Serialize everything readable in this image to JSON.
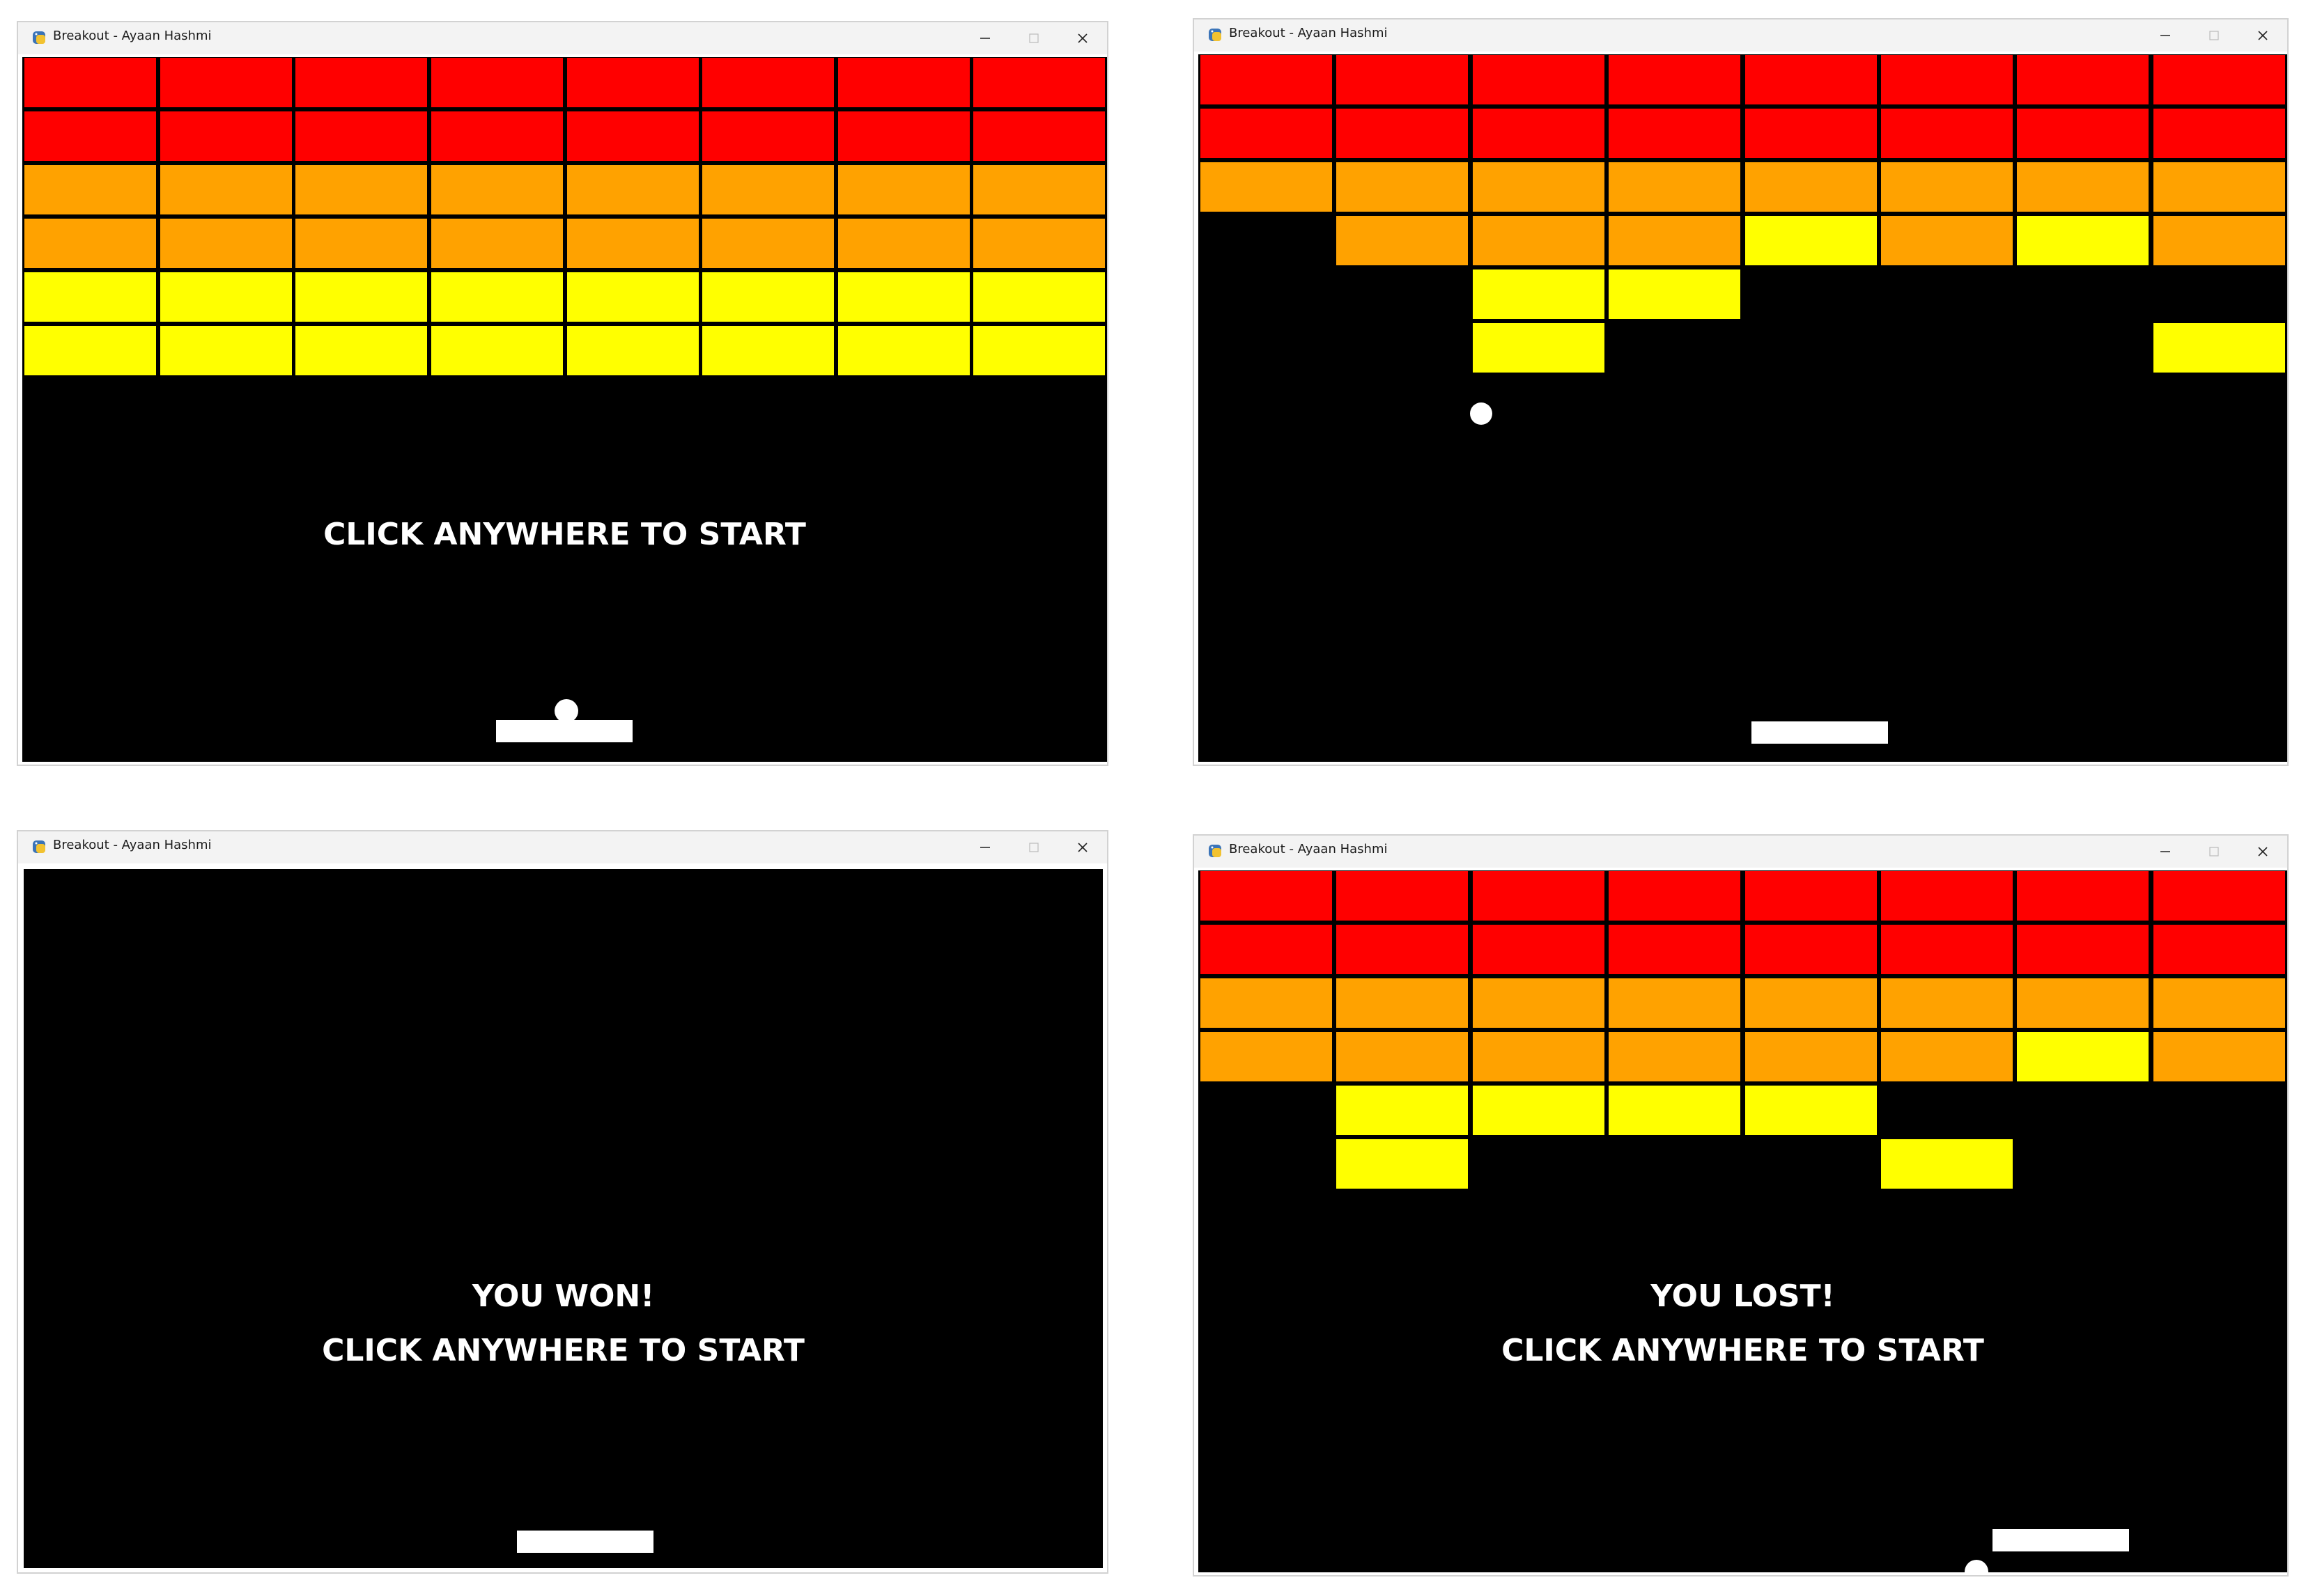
{
  "colors": {
    "red": "#ff0000",
    "orange": "#ffa200",
    "yellow": "#ffff00",
    "canvas": "#000000",
    "paddle": "#ffffff",
    "ball": "#ffffff",
    "titlebar": "#f3f3f3"
  },
  "icons": {
    "app": "python-pygame-icon",
    "minimize": "minimize-icon",
    "maximize": "maximize-icon",
    "close": "close-icon"
  },
  "grid": {
    "columns": 8,
    "rows": 6,
    "row_colors": [
      "red",
      "red",
      "orange",
      "orange",
      "yellow",
      "yellow"
    ]
  },
  "windows": [
    {
      "id": "start-screen",
      "title": "Breakout - Ayaan Hashmi",
      "bricks_present": [
        [
          1,
          1,
          1,
          1,
          1,
          1,
          1,
          1
        ],
        [
          1,
          1,
          1,
          1,
          1,
          1,
          1,
          1
        ],
        [
          1,
          1,
          1,
          1,
          1,
          1,
          1,
          1
        ],
        [
          1,
          1,
          1,
          1,
          1,
          1,
          1,
          1
        ],
        [
          1,
          1,
          1,
          1,
          1,
          1,
          1,
          1
        ],
        [
          1,
          1,
          1,
          1,
          1,
          1,
          1,
          1
        ]
      ],
      "brick_color_overrides": [],
      "messages": [
        "CLICK ANYWHERE TO START"
      ],
      "ball_visible": true
    },
    {
      "id": "in-play",
      "title": "Breakout - Ayaan Hashmi",
      "bricks_present": [
        [
          1,
          1,
          1,
          1,
          1,
          1,
          1,
          1
        ],
        [
          1,
          1,
          1,
          1,
          1,
          1,
          1,
          1
        ],
        [
          1,
          1,
          1,
          1,
          1,
          1,
          1,
          1
        ],
        [
          0,
          1,
          1,
          1,
          1,
          1,
          1,
          1
        ],
        [
          0,
          0,
          1,
          1,
          0,
          0,
          0,
          0
        ],
        [
          0,
          0,
          1,
          0,
          0,
          0,
          0,
          1
        ]
      ],
      "brick_color_overrides": [
        [
          3,
          4,
          "yellow"
        ],
        [
          3,
          6,
          "yellow"
        ]
      ],
      "messages": [],
      "ball_visible": true
    },
    {
      "id": "won-screen",
      "title": "Breakout - Ayaan Hashmi",
      "bricks_present": [],
      "brick_color_overrides": [],
      "messages": [
        "YOU WON!",
        "CLICK ANYWHERE TO START"
      ],
      "ball_visible": false
    },
    {
      "id": "lost-screen",
      "title": "Breakout - Ayaan Hashmi",
      "bricks_present": [
        [
          1,
          1,
          1,
          1,
          1,
          1,
          1,
          1
        ],
        [
          1,
          1,
          1,
          1,
          1,
          1,
          1,
          1
        ],
        [
          1,
          1,
          1,
          1,
          1,
          1,
          1,
          1
        ],
        [
          1,
          1,
          1,
          1,
          1,
          1,
          1,
          1
        ],
        [
          0,
          1,
          1,
          1,
          1,
          0,
          0,
          0
        ],
        [
          0,
          1,
          0,
          0,
          0,
          1,
          0,
          0
        ]
      ],
      "brick_color_overrides": [
        [
          3,
          6,
          "yellow"
        ]
      ],
      "messages": [
        "YOU LOST!",
        "CLICK ANYWHERE TO START"
      ],
      "ball_visible": true
    }
  ]
}
